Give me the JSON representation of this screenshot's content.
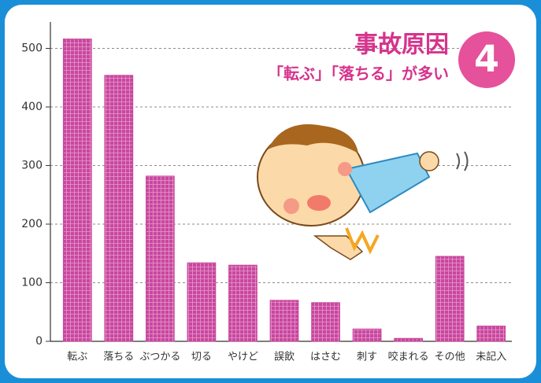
{
  "chart_data": {
    "type": "bar",
    "title": "事故原因",
    "subtitle": "「転ぶ」「落ちる」が多い",
    "badge": "4",
    "categories": [
      "転ぶ",
      "落ちる",
      "ぶつかる",
      "切る",
      "やけど",
      "誤飲",
      "はさむ",
      "刺す",
      "咬まれる",
      "その他",
      "未記入"
    ],
    "values": [
      516,
      454,
      282,
      134,
      130,
      70,
      66,
      21,
      5,
      145,
      26
    ],
    "color": "#c9479f",
    "ylim": [
      0,
      545
    ],
    "yticks": [
      0,
      100,
      200,
      300,
      400,
      500
    ],
    "grid": true
  }
}
